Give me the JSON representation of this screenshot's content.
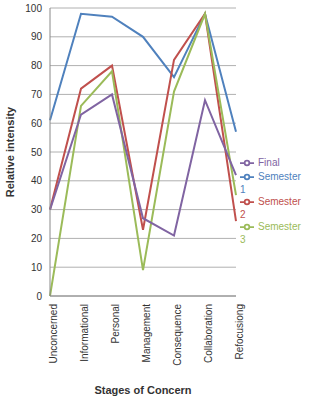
{
  "chart_data": {
    "type": "line",
    "x_label": "Stages of Concern",
    "y_label": "Relative intensity",
    "categories": [
      "Unconcerned",
      "Informational",
      "Personal",
      "Management",
      "Consequence",
      "Collaboration",
      "Refocusiong"
    ],
    "series": [
      {
        "name": "Semester 1",
        "color": "#4f81bd",
        "values": [
          61,
          98,
          97,
          90,
          76,
          98,
          57
        ]
      },
      {
        "name": "Semester 2",
        "color": "#c0504d",
        "values": [
          30,
          72,
          80,
          23,
          82,
          98,
          26
        ]
      },
      {
        "name": "Semester 3",
        "color": "#9bbb59",
        "values": [
          0,
          66,
          78,
          9,
          71,
          98,
          35
        ]
      },
      {
        "name": "Final",
        "color": "#8064a2",
        "values": [
          30,
          63,
          70,
          27,
          21,
          68,
          42
        ]
      }
    ],
    "ylim": [
      0,
      100
    ],
    "yticks": [
      0,
      10,
      20,
      30,
      40,
      50,
      60,
      70,
      80,
      90,
      100
    ],
    "grid": true,
    "legend": "right"
  }
}
